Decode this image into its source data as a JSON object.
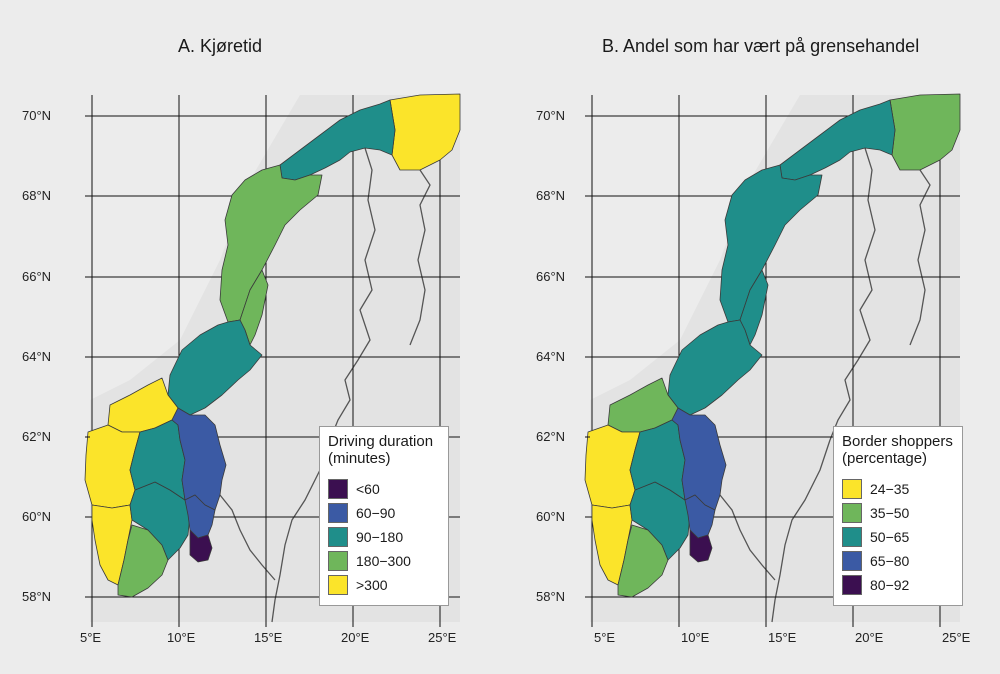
{
  "panels": [
    {
      "title": "A. Kjøretid",
      "legend": {
        "title_line1": "Driving duration",
        "title_line2": "(minutes)",
        "items": [
          {
            "label": "<60",
            "color": "#3b0f50"
          },
          {
            "label": "60−90",
            "color": "#3b5aa4"
          },
          {
            "label": "90−180",
            "color": "#1f8e8a"
          },
          {
            "label": "180−300",
            "color": "#6fb65b"
          },
          {
            "label": ">300",
            "color": "#fbe42a"
          }
        ]
      },
      "region_classes": {
        "finnmark": 4,
        "troms_nordland_north": 2,
        "nordland_coast": 3,
        "helgeland": 3,
        "trondelag": 2,
        "more": 4,
        "vestland": 4,
        "rogaland": 4,
        "agder": 3,
        "telemark_buskerud": 2,
        "oppland": 2,
        "hedmark": 1,
        "viken_east": 1,
        "ostfold": 0
      }
    },
    {
      "title": "B. Andel som har vært på grensehandel",
      "legend": {
        "title_line1": "Border shoppers",
        "title_line2": "(percentage)",
        "items": [
          {
            "label": "24−35",
            "color": "#fbe42a"
          },
          {
            "label": "35−50",
            "color": "#6fb65b"
          },
          {
            "label": "50−65",
            "color": "#1f8e8a"
          },
          {
            "label": "65−80",
            "color": "#3b5aa4"
          },
          {
            "label": "80−92",
            "color": "#3b0f50"
          }
        ]
      },
      "region_classes": {
        "finnmark": 1,
        "troms_nordland_north": 2,
        "nordland_coast": 2,
        "helgeland": 2,
        "trondelag": 2,
        "more": 1,
        "vestland": 0,
        "rogaland": 0,
        "agder": 1,
        "telemark_buskerud": 2,
        "oppland": 2,
        "hedmark": 3,
        "viken_east": 3,
        "ostfold": 4
      }
    }
  ],
  "axes": {
    "lat_labels": [
      "70°N",
      "68°N",
      "66°N",
      "64°N",
      "62°N",
      "60°N",
      "58°N"
    ],
    "lon_labels": [
      "5°E",
      "10°E",
      "15°E",
      "20°E",
      "25°E"
    ]
  },
  "colors": {
    "background": "#ececec",
    "land": "#e3e3e3",
    "grid": "#111111",
    "border": "#555555"
  }
}
